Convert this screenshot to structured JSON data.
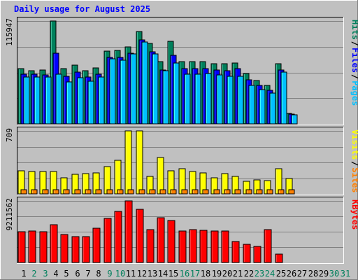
{
  "chart_data": [
    {
      "type": "bar",
      "title": "Daily usage for August 2025",
      "categories": [
        "1",
        "2",
        "3",
        "4",
        "5",
        "6",
        "7",
        "8",
        "9",
        "10",
        "11",
        "12",
        "13",
        "14",
        "15",
        "16",
        "17",
        "18",
        "19",
        "20",
        "21",
        "22",
        "23",
        "24",
        "25",
        "26",
        "27",
        "28",
        "29",
        "30",
        "31"
      ],
      "weekend_days": [
        "2",
        "3",
        "9",
        "10",
        "16",
        "17",
        "23",
        "24",
        "30",
        "31"
      ],
      "ylim": [
        0,
        115947
      ],
      "ymax_label": "115947",
      "legend": [
        {
          "name": "Hits",
          "color": "#00805c"
        },
        {
          "name": "Files",
          "color": "#0000ff"
        },
        {
          "name": "Pages",
          "color": "#00c0ff"
        }
      ],
      "legend_separators": [
        "/",
        "/"
      ],
      "series": [
        {
          "name": "Hits",
          "color": "#00805c",
          "values": [
            62000,
            60000,
            61000,
            115947,
            62000,
            66000,
            60000,
            63000,
            82000,
            83000,
            87000,
            104000,
            91000,
            70000,
            93000,
            70000,
            70000,
            70000,
            68000,
            68000,
            69000,
            57000,
            49000,
            43000,
            68000,
            12000,
            0,
            0,
            0,
            0,
            0
          ]
        },
        {
          "name": "Files",
          "color": "#0000ff",
          "values": [
            56000,
            56000,
            55000,
            80000,
            54000,
            58000,
            53000,
            56000,
            75000,
            75000,
            80000,
            95000,
            81000,
            61000,
            77000,
            62000,
            62000,
            62000,
            61000,
            60000,
            62000,
            50000,
            43000,
            38000,
            61000,
            11000,
            0,
            0,
            0,
            0,
            0
          ]
        },
        {
          "name": "Pages",
          "color": "#00c0ff",
          "values": [
            53000,
            53000,
            53000,
            56000,
            47000,
            52000,
            48000,
            53000,
            73000,
            72000,
            79000,
            92000,
            79000,
            60000,
            69000,
            56000,
            56000,
            57000,
            55000,
            54000,
            54000,
            43000,
            39000,
            35000,
            58000,
            10000,
            0,
            0,
            0,
            0,
            0
          ]
        }
      ]
    },
    {
      "type": "bar",
      "categories": [
        "1",
        "2",
        "3",
        "4",
        "5",
        "6",
        "7",
        "8",
        "9",
        "10",
        "11",
        "12",
        "13",
        "14",
        "15",
        "16",
        "17",
        "18",
        "19",
        "20",
        "21",
        "22",
        "23",
        "24",
        "25",
        "26",
        "27",
        "28",
        "29",
        "30",
        "31"
      ],
      "ylim": [
        0,
        709
      ],
      "ymax_label": "709",
      "legend": [
        {
          "name": "Visits",
          "color": "#ffff00"
        },
        {
          "name": "Sites",
          "color": "#ff8000"
        }
      ],
      "legend_separators": [
        "/"
      ],
      "series": [
        {
          "name": "Visits",
          "color": "#ffff00",
          "values": [
            260,
            255,
            255,
            255,
            180,
            220,
            230,
            240,
            310,
            380,
            709,
            709,
            195,
            410,
            260,
            280,
            250,
            240,
            185,
            230,
            200,
            145,
            155,
            150,
            280,
            175,
            0,
            0,
            0,
            0,
            0
          ]
        },
        {
          "name": "Sites",
          "color": "#ff8000",
          "values": [
            45,
            45,
            45,
            45,
            45,
            45,
            45,
            45,
            45,
            45,
            45,
            45,
            45,
            45,
            45,
            45,
            45,
            45,
            45,
            45,
            45,
            45,
            45,
            45,
            45,
            45,
            0,
            0,
            0,
            0,
            0
          ]
        }
      ]
    },
    {
      "type": "bar",
      "categories": [
        "1",
        "2",
        "3",
        "4",
        "5",
        "6",
        "7",
        "8",
        "9",
        "10",
        "11",
        "12",
        "13",
        "14",
        "15",
        "16",
        "17",
        "18",
        "19",
        "20",
        "21",
        "22",
        "23",
        "24",
        "25",
        "26",
        "27",
        "28",
        "29",
        "30",
        "31"
      ],
      "ylim": [
        0,
        9211562
      ],
      "ymax_label": "9211562",
      "legend": [
        {
          "name": "KBytes",
          "color": "#ff0000"
        }
      ],
      "legend_separators": [],
      "series": [
        {
          "name": "KBytes",
          "color": "#ff0000",
          "values": [
            4650000,
            4700000,
            4600000,
            5700000,
            4150000,
            3850000,
            3900000,
            5100000,
            6550000,
            7600000,
            9211562,
            8000000,
            4900000,
            6700000,
            6300000,
            4700000,
            4900000,
            4800000,
            4750000,
            4750000,
            3150000,
            2700000,
            2450000,
            4900000,
            1300000,
            0,
            0,
            0,
            0,
            0,
            0
          ]
        }
      ]
    }
  ]
}
